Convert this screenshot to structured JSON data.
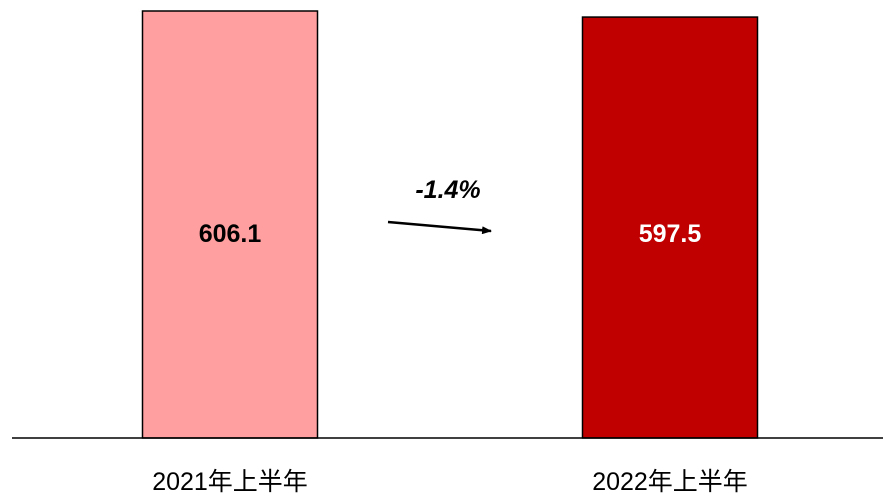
{
  "chart_data": {
    "type": "bar",
    "categories": [
      "2021年上半年",
      "2022年上半年"
    ],
    "values": [
      606.1,
      597.5
    ],
    "data_labels": [
      "606.1",
      "597.5"
    ],
    "bar_colors": [
      "#ff9f9f",
      "#c00000"
    ],
    "label_colors": [
      "#000000",
      "#ffffff"
    ],
    "change_label": "-1.4%",
    "title": "",
    "xlabel": "",
    "ylabel": "",
    "ylim": [
      0,
      606.1
    ],
    "grid": false
  }
}
